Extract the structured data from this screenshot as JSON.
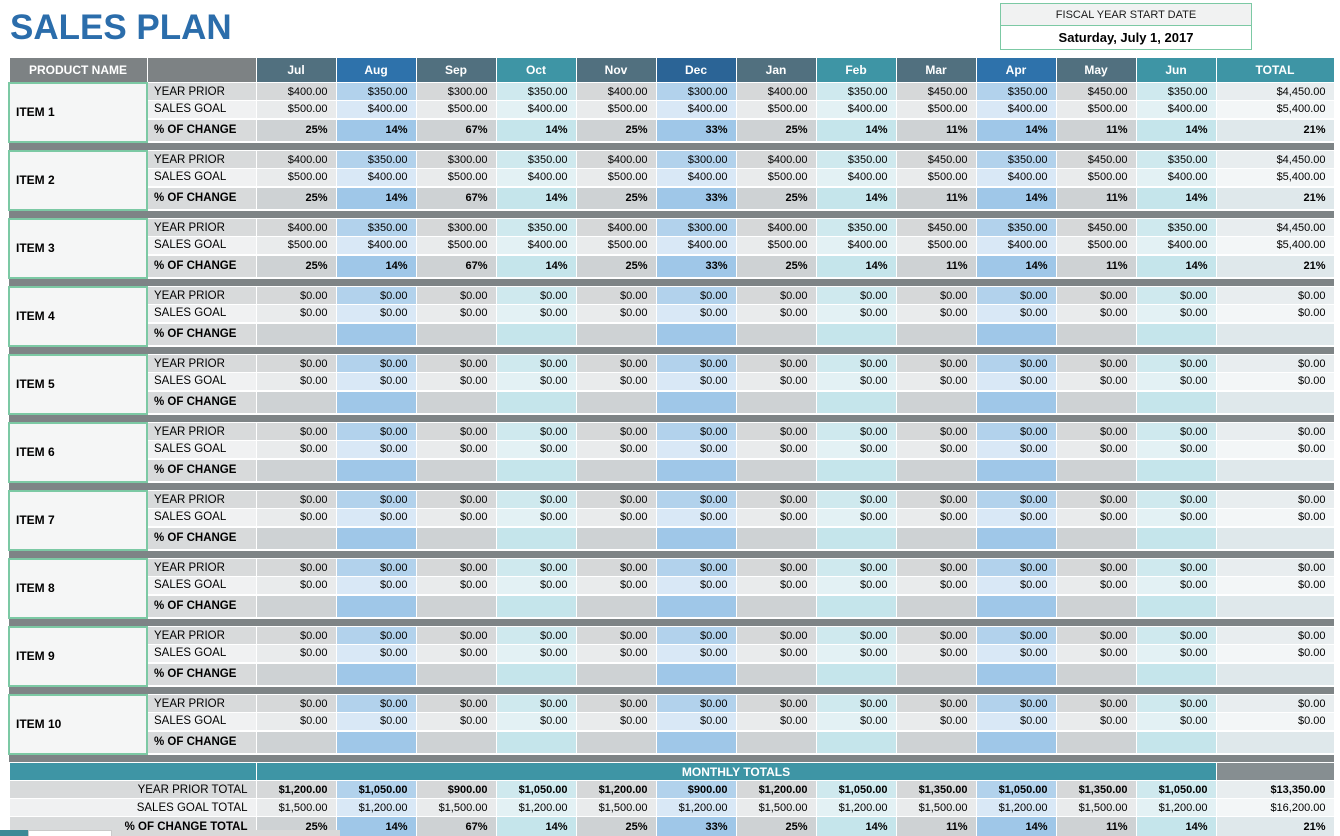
{
  "title": "SALES PLAN",
  "fiscal": {
    "label": "FISCAL YEAR START DATE",
    "value": "Saturday, July 1, 2017"
  },
  "colors": {
    "title-blue": "#2b6dab",
    "header-gray": "#7d8284",
    "slate": "#51707f",
    "blue": "#2e72ab",
    "darkblue": "#2b6496",
    "teal": "#3e95a5",
    "band-total-gray": "#868e91",
    "separator": "#7e8486",
    "green-border": "#7cc9a4",
    "item-bg": "#f5f6f6",
    "label-dark": "#d8dadb",
    "label-light": "#f0f1f2",
    "gray-yp": "#d6d8d9",
    "gray-sg": "#e9ebec",
    "gray-pct": "#ced2d4",
    "blue-yp": "#b2d2ec",
    "blue-sg": "#d9e8f6",
    "blue-pct": "#9fc7e8",
    "teal-yp": "#cfe9ee",
    "teal-sg": "#e3f1f4",
    "teal-pct": "#c5e5eb",
    "total-yp": "#e8edef",
    "total-sg": "#f3f6f7",
    "total-pct": "#dfe8eb"
  },
  "table": {
    "product_header": "PRODUCT NAME",
    "total_header": "TOTAL",
    "months": [
      {
        "label": "Jul",
        "theme": "slate"
      },
      {
        "label": "Aug",
        "theme": "blue"
      },
      {
        "label": "Sep",
        "theme": "slate"
      },
      {
        "label": "Oct",
        "theme": "teal"
      },
      {
        "label": "Nov",
        "theme": "slate"
      },
      {
        "label": "Dec",
        "theme": "darkblue"
      },
      {
        "label": "Jan",
        "theme": "slate"
      },
      {
        "label": "Feb",
        "theme": "teal"
      },
      {
        "label": "Mar",
        "theme": "slate"
      },
      {
        "label": "Apr",
        "theme": "blue"
      },
      {
        "label": "May",
        "theme": "slate"
      },
      {
        "label": "Jun",
        "theme": "teal"
      }
    ],
    "row_labels": {
      "year_prior": "YEAR PRIOR",
      "sales_goal": "SALES GOAL",
      "pct_change": "% OF CHANGE"
    },
    "items": [
      {
        "name": "ITEM 1",
        "year_prior": [
          "$400.00",
          "$350.00",
          "$300.00",
          "$350.00",
          "$400.00",
          "$300.00",
          "$400.00",
          "$350.00",
          "$450.00",
          "$350.00",
          "$450.00",
          "$350.00",
          "$4,450.00"
        ],
        "sales_goal": [
          "$500.00",
          "$400.00",
          "$500.00",
          "$400.00",
          "$500.00",
          "$400.00",
          "$500.00",
          "$400.00",
          "$500.00",
          "$400.00",
          "$500.00",
          "$400.00",
          "$5,400.00"
        ],
        "pct_change": [
          "25%",
          "14%",
          "67%",
          "14%",
          "25%",
          "33%",
          "25%",
          "14%",
          "11%",
          "14%",
          "11%",
          "14%",
          "21%"
        ]
      },
      {
        "name": "ITEM 2",
        "year_prior": [
          "$400.00",
          "$350.00",
          "$300.00",
          "$350.00",
          "$400.00",
          "$300.00",
          "$400.00",
          "$350.00",
          "$450.00",
          "$350.00",
          "$450.00",
          "$350.00",
          "$4,450.00"
        ],
        "sales_goal": [
          "$500.00",
          "$400.00",
          "$500.00",
          "$400.00",
          "$500.00",
          "$400.00",
          "$500.00",
          "$400.00",
          "$500.00",
          "$400.00",
          "$500.00",
          "$400.00",
          "$5,400.00"
        ],
        "pct_change": [
          "25%",
          "14%",
          "67%",
          "14%",
          "25%",
          "33%",
          "25%",
          "14%",
          "11%",
          "14%",
          "11%",
          "14%",
          "21%"
        ]
      },
      {
        "name": "ITEM 3",
        "year_prior": [
          "$400.00",
          "$350.00",
          "$300.00",
          "$350.00",
          "$400.00",
          "$300.00",
          "$400.00",
          "$350.00",
          "$450.00",
          "$350.00",
          "$450.00",
          "$350.00",
          "$4,450.00"
        ],
        "sales_goal": [
          "$500.00",
          "$400.00",
          "$500.00",
          "$400.00",
          "$500.00",
          "$400.00",
          "$500.00",
          "$400.00",
          "$500.00",
          "$400.00",
          "$500.00",
          "$400.00",
          "$5,400.00"
        ],
        "pct_change": [
          "25%",
          "14%",
          "67%",
          "14%",
          "25%",
          "33%",
          "25%",
          "14%",
          "11%",
          "14%",
          "11%",
          "14%",
          "21%"
        ]
      },
      {
        "name": "ITEM 4",
        "year_prior": [
          "$0.00",
          "$0.00",
          "$0.00",
          "$0.00",
          "$0.00",
          "$0.00",
          "$0.00",
          "$0.00",
          "$0.00",
          "$0.00",
          "$0.00",
          "$0.00",
          "$0.00"
        ],
        "sales_goal": [
          "$0.00",
          "$0.00",
          "$0.00",
          "$0.00",
          "$0.00",
          "$0.00",
          "$0.00",
          "$0.00",
          "$0.00",
          "$0.00",
          "$0.00",
          "$0.00",
          "$0.00"
        ],
        "pct_change": [
          "",
          "",
          "",
          "",
          "",
          "",
          "",
          "",
          "",
          "",
          "",
          "",
          ""
        ]
      },
      {
        "name": "ITEM 5",
        "year_prior": [
          "$0.00",
          "$0.00",
          "$0.00",
          "$0.00",
          "$0.00",
          "$0.00",
          "$0.00",
          "$0.00",
          "$0.00",
          "$0.00",
          "$0.00",
          "$0.00",
          "$0.00"
        ],
        "sales_goal": [
          "$0.00",
          "$0.00",
          "$0.00",
          "$0.00",
          "$0.00",
          "$0.00",
          "$0.00",
          "$0.00",
          "$0.00",
          "$0.00",
          "$0.00",
          "$0.00",
          "$0.00"
        ],
        "pct_change": [
          "",
          "",
          "",
          "",
          "",
          "",
          "",
          "",
          "",
          "",
          "",
          "",
          ""
        ]
      },
      {
        "name": "ITEM 6",
        "year_prior": [
          "$0.00",
          "$0.00",
          "$0.00",
          "$0.00",
          "$0.00",
          "$0.00",
          "$0.00",
          "$0.00",
          "$0.00",
          "$0.00",
          "$0.00",
          "$0.00",
          "$0.00"
        ],
        "sales_goal": [
          "$0.00",
          "$0.00",
          "$0.00",
          "$0.00",
          "$0.00",
          "$0.00",
          "$0.00",
          "$0.00",
          "$0.00",
          "$0.00",
          "$0.00",
          "$0.00",
          "$0.00"
        ],
        "pct_change": [
          "",
          "",
          "",
          "",
          "",
          "",
          "",
          "",
          "",
          "",
          "",
          "",
          ""
        ]
      },
      {
        "name": "ITEM 7",
        "year_prior": [
          "$0.00",
          "$0.00",
          "$0.00",
          "$0.00",
          "$0.00",
          "$0.00",
          "$0.00",
          "$0.00",
          "$0.00",
          "$0.00",
          "$0.00",
          "$0.00",
          "$0.00"
        ],
        "sales_goal": [
          "$0.00",
          "$0.00",
          "$0.00",
          "$0.00",
          "$0.00",
          "$0.00",
          "$0.00",
          "$0.00",
          "$0.00",
          "$0.00",
          "$0.00",
          "$0.00",
          "$0.00"
        ],
        "pct_change": [
          "",
          "",
          "",
          "",
          "",
          "",
          "",
          "",
          "",
          "",
          "",
          "",
          ""
        ]
      },
      {
        "name": "ITEM 8",
        "year_prior": [
          "$0.00",
          "$0.00",
          "$0.00",
          "$0.00",
          "$0.00",
          "$0.00",
          "$0.00",
          "$0.00",
          "$0.00",
          "$0.00",
          "$0.00",
          "$0.00",
          "$0.00"
        ],
        "sales_goal": [
          "$0.00",
          "$0.00",
          "$0.00",
          "$0.00",
          "$0.00",
          "$0.00",
          "$0.00",
          "$0.00",
          "$0.00",
          "$0.00",
          "$0.00",
          "$0.00",
          "$0.00"
        ],
        "pct_change": [
          "",
          "",
          "",
          "",
          "",
          "",
          "",
          "",
          "",
          "",
          "",
          "",
          ""
        ]
      },
      {
        "name": "ITEM 9",
        "year_prior": [
          "$0.00",
          "$0.00",
          "$0.00",
          "$0.00",
          "$0.00",
          "$0.00",
          "$0.00",
          "$0.00",
          "$0.00",
          "$0.00",
          "$0.00",
          "$0.00",
          "$0.00"
        ],
        "sales_goal": [
          "$0.00",
          "$0.00",
          "$0.00",
          "$0.00",
          "$0.00",
          "$0.00",
          "$0.00",
          "$0.00",
          "$0.00",
          "$0.00",
          "$0.00",
          "$0.00",
          "$0.00"
        ],
        "pct_change": [
          "",
          "",
          "",
          "",
          "",
          "",
          "",
          "",
          "",
          "",
          "",
          "",
          ""
        ]
      },
      {
        "name": "ITEM 10",
        "year_prior": [
          "$0.00",
          "$0.00",
          "$0.00",
          "$0.00",
          "$0.00",
          "$0.00",
          "$0.00",
          "$0.00",
          "$0.00",
          "$0.00",
          "$0.00",
          "$0.00",
          "$0.00"
        ],
        "sales_goal": [
          "$0.00",
          "$0.00",
          "$0.00",
          "$0.00",
          "$0.00",
          "$0.00",
          "$0.00",
          "$0.00",
          "$0.00",
          "$0.00",
          "$0.00",
          "$0.00",
          "$0.00"
        ],
        "pct_change": [
          "",
          "",
          "",
          "",
          "",
          "",
          "",
          "",
          "",
          "",
          "",
          "",
          ""
        ]
      }
    ],
    "monthly_totals": {
      "band_label": "MONTHLY TOTALS",
      "rows": [
        {
          "label": "YEAR PRIOR TOTAL",
          "kind": "yp",
          "bold_values": true,
          "values": [
            "$1,200.00",
            "$1,050.00",
            "$900.00",
            "$1,050.00",
            "$1,200.00",
            "$900.00",
            "$1,200.00",
            "$1,050.00",
            "$1,350.00",
            "$1,050.00",
            "$1,350.00",
            "$1,050.00",
            "$13,350.00"
          ]
        },
        {
          "label": "SALES GOAL TOTAL",
          "kind": "sg",
          "bold_values": false,
          "values": [
            "$1,500.00",
            "$1,200.00",
            "$1,500.00",
            "$1,200.00",
            "$1,500.00",
            "$1,200.00",
            "$1,500.00",
            "$1,200.00",
            "$1,500.00",
            "$1,200.00",
            "$1,500.00",
            "$1,200.00",
            "$16,200.00"
          ]
        },
        {
          "label": "% OF CHANGE TOTAL",
          "kind": "pct",
          "bold_values": true,
          "values": [
            "25%",
            "14%",
            "67%",
            "14%",
            "25%",
            "33%",
            "25%",
            "14%",
            "11%",
            "14%",
            "11%",
            "14%",
            "21%"
          ]
        }
      ]
    }
  }
}
